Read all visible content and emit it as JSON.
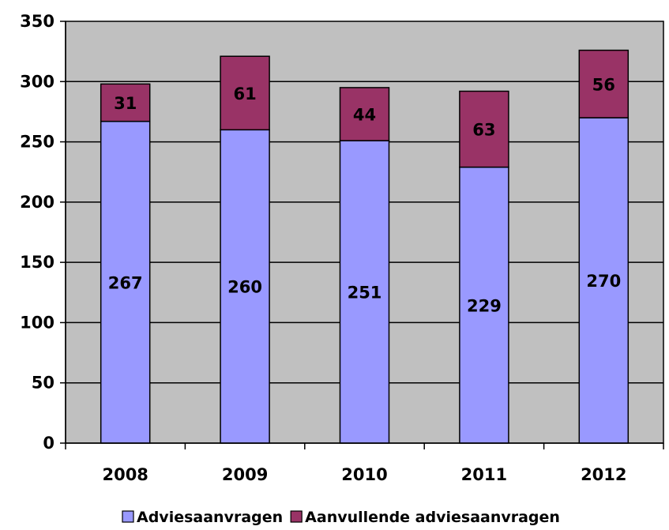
{
  "chart_data": {
    "type": "bar",
    "stacked": true,
    "categories": [
      "2008",
      "2009",
      "2010",
      "2011",
      "2012"
    ],
    "series": [
      {
        "name": "Adviesaanvragen",
        "values": [
          267,
          260,
          251,
          229,
          270
        ],
        "color": "#9999ff"
      },
      {
        "name": "Aanvullende adviesaanvragen",
        "values": [
          31,
          61,
          44,
          63,
          56
        ],
        "color": "#993366"
      }
    ],
    "ylim": [
      0,
      350
    ],
    "yticks": [
      "0",
      "50",
      "100",
      "150",
      "200",
      "250",
      "300",
      "350"
    ],
    "grid": true,
    "legend": "bottom",
    "plot_background": "#c0c0c0"
  }
}
